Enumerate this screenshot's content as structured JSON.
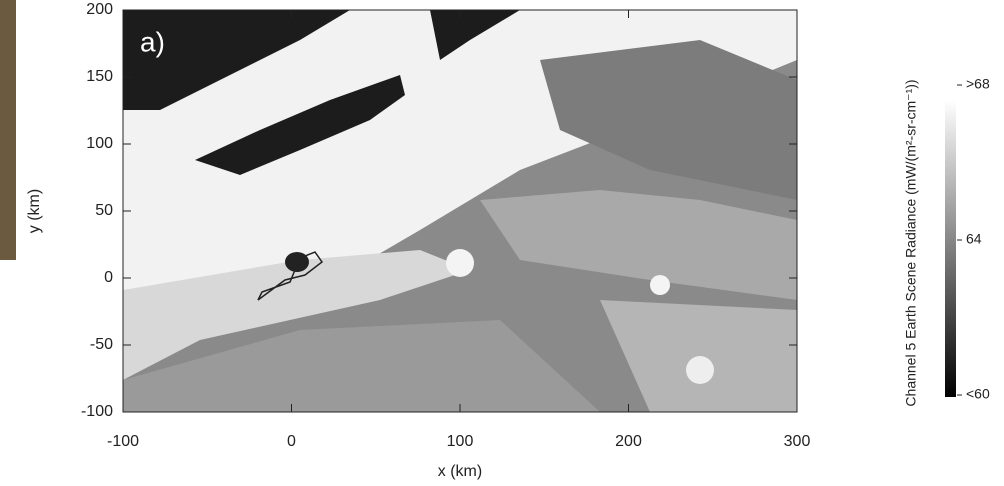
{
  "chart_data": {
    "type": "image",
    "annotation": "a)",
    "xlabel": "x (km)",
    "ylabel": "y (km)",
    "xlim": [
      -100,
      300
    ],
    "xticks": [
      -100,
      0,
      100,
      200,
      300
    ],
    "ylim": [
      -100,
      200
    ],
    "yticks": [
      -100,
      -50,
      0,
      50,
      100,
      150,
      200
    ],
    "colorbar": {
      "label": "Channel 5 Earth Scene Radiance (mW/(m²-sr-cm⁻¹))",
      "lim": [
        60,
        68
      ],
      "ticks": [
        {
          "value": 68,
          "label": ">68"
        },
        64,
        {
          "value": 60,
          "label": "<60"
        }
      ]
    }
  }
}
